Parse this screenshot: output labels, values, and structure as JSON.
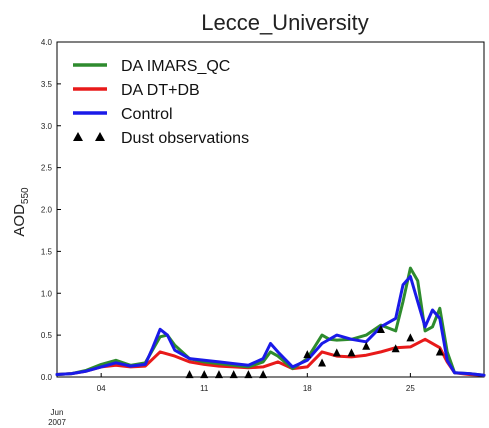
{
  "chart_data": {
    "type": "line",
    "title": "Lecce_University",
    "ylabel": "AOD",
    "ylabel_subscript": "550",
    "xlabel": "",
    "date_caption": [
      "Jun",
      "2007"
    ],
    "ylim": [
      0,
      4.0
    ],
    "xlim": [
      "2007-06-01",
      "2007-06-30"
    ],
    "yticks": [
      "0.0",
      "0.5",
      "1.0",
      "1.5",
      "2.0",
      "2.5",
      "3.0",
      "3.5",
      "4.0"
    ],
    "xticks": [
      {
        "label": "04",
        "day": 4
      },
      {
        "label": "11",
        "day": 11
      },
      {
        "label": "18",
        "day": 18
      },
      {
        "label": "25",
        "day": 25
      }
    ],
    "legend_position": "top-left",
    "series": [
      {
        "name": "DA IMARS_QC",
        "color": "#2e8b2e",
        "x": [
          1,
          2,
          3,
          4,
          5,
          6,
          7,
          8,
          8.5,
          9,
          10,
          11,
          12,
          13,
          14,
          15,
          15.5,
          16,
          17,
          18,
          19,
          19.5,
          20,
          21,
          22,
          23,
          24,
          24.5,
          25,
          25.5,
          26,
          26.5,
          27,
          27.5,
          28,
          29,
          30
        ],
        "y": [
          0.03,
          0.04,
          0.08,
          0.15,
          0.2,
          0.14,
          0.17,
          0.48,
          0.5,
          0.38,
          0.22,
          0.18,
          0.16,
          0.14,
          0.12,
          0.18,
          0.3,
          0.25,
          0.1,
          0.22,
          0.5,
          0.45,
          0.44,
          0.45,
          0.5,
          0.62,
          0.55,
          0.9,
          1.3,
          1.15,
          0.55,
          0.6,
          0.82,
          0.3,
          0.05,
          0.04,
          0.02
        ]
      },
      {
        "name": "DA DT+DB",
        "color": "#e81a1a",
        "x": [
          1,
          2,
          3,
          4,
          5,
          6,
          7,
          8,
          9,
          10,
          11,
          12,
          13,
          14,
          15,
          16,
          17,
          18,
          19,
          20,
          21,
          22,
          23,
          24,
          25,
          26,
          27,
          27.5,
          28,
          29,
          30
        ],
        "y": [
          0.03,
          0.04,
          0.07,
          0.12,
          0.14,
          0.12,
          0.13,
          0.3,
          0.25,
          0.18,
          0.15,
          0.13,
          0.12,
          0.11,
          0.12,
          0.18,
          0.1,
          0.12,
          0.3,
          0.25,
          0.24,
          0.26,
          0.3,
          0.35,
          0.36,
          0.45,
          0.35,
          0.18,
          0.05,
          0.03,
          0.02
        ]
      },
      {
        "name": "Control",
        "color": "#1a1ae8",
        "x": [
          1,
          2,
          3,
          4,
          5,
          6,
          7,
          7.5,
          8,
          8.5,
          9,
          10,
          11,
          12,
          13,
          14,
          15,
          15.5,
          16,
          17,
          18,
          19,
          20,
          21,
          22,
          23,
          24,
          24.5,
          25,
          25.5,
          26,
          26.5,
          27,
          27.5,
          28,
          29,
          30
        ],
        "y": [
          0.03,
          0.04,
          0.07,
          0.12,
          0.17,
          0.13,
          0.15,
          0.35,
          0.57,
          0.5,
          0.32,
          0.22,
          0.2,
          0.18,
          0.16,
          0.14,
          0.22,
          0.4,
          0.3,
          0.12,
          0.2,
          0.4,
          0.5,
          0.45,
          0.42,
          0.6,
          0.7,
          1.1,
          1.2,
          0.9,
          0.6,
          0.8,
          0.7,
          0.2,
          0.05,
          0.04,
          0.02
        ]
      },
      {
        "name": "Dust observations",
        "color": "#000000",
        "marker": "triangle",
        "x": [
          10,
          11,
          12,
          13,
          14,
          15,
          18,
          19,
          20,
          21,
          22,
          23,
          24,
          25,
          27
        ],
        "y": [
          0.01,
          0.01,
          0.01,
          0.01,
          0.01,
          0.01,
          0.25,
          0.15,
          0.27,
          0.27,
          0.35,
          0.55,
          0.32,
          0.45,
          0.28
        ]
      }
    ]
  }
}
